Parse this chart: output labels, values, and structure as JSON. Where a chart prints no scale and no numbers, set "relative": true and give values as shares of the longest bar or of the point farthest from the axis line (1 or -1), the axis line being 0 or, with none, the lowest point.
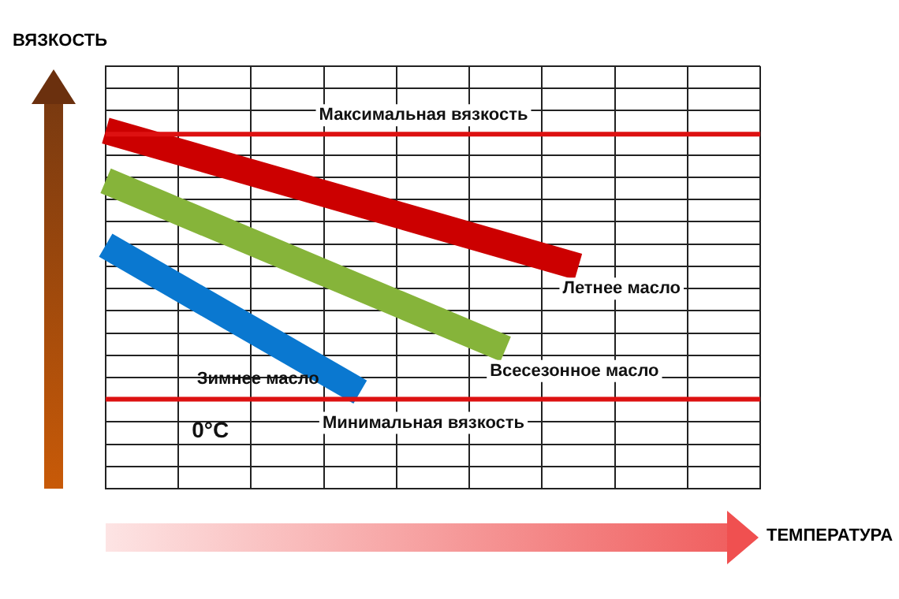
{
  "chart_data": {
    "type": "line",
    "relative": true,
    "xlabel": "ТЕМПЕРАТУРА",
    "ylabel": "ВЯЗКОСТЬ",
    "categories": [
      null,
      null,
      null,
      null,
      null,
      null,
      null,
      null,
      null,
      null,
      null,
      null,
      null,
      null,
      null,
      null,
      null,
      null,
      null
    ],
    "series": [
      {
        "name": "Летнее масло",
        "color": "#cc0000",
        "values": [
          1.0,
          null,
          null,
          null,
          null,
          null,
          null,
          null,
          null,
          null,
          null,
          null,
          null,
          0.62,
          null,
          null,
          null,
          null,
          null
        ]
      },
      {
        "name": "Всесезонное масло",
        "color": "#86b43a",
        "values": [
          0.86,
          null,
          null,
          null,
          null,
          null,
          null,
          null,
          null,
          null,
          null,
          0.39,
          null,
          null,
          null,
          null,
          null,
          null,
          null
        ]
      },
      {
        "name": "Зимнее масло",
        "color": "#0a78d0",
        "values": [
          0.68,
          null,
          null,
          null,
          null,
          null,
          null,
          0.27,
          null,
          null,
          null,
          null,
          null,
          null,
          null,
          null,
          null,
          null,
          null
        ]
      }
    ],
    "ref_lines": [
      {
        "axis": "y",
        "value": 0.99,
        "label": "Максимальная вязкость",
        "color": "#dd1111"
      },
      {
        "axis": "y",
        "value": 0.25,
        "label": "Минимальная вязкость",
        "color": "#dd1111"
      }
    ],
    "annotations": [
      "0°C"
    ],
    "grid": true,
    "legend": false,
    "tick_labels": false,
    "marker": "none",
    "line_style": "solid"
  }
}
